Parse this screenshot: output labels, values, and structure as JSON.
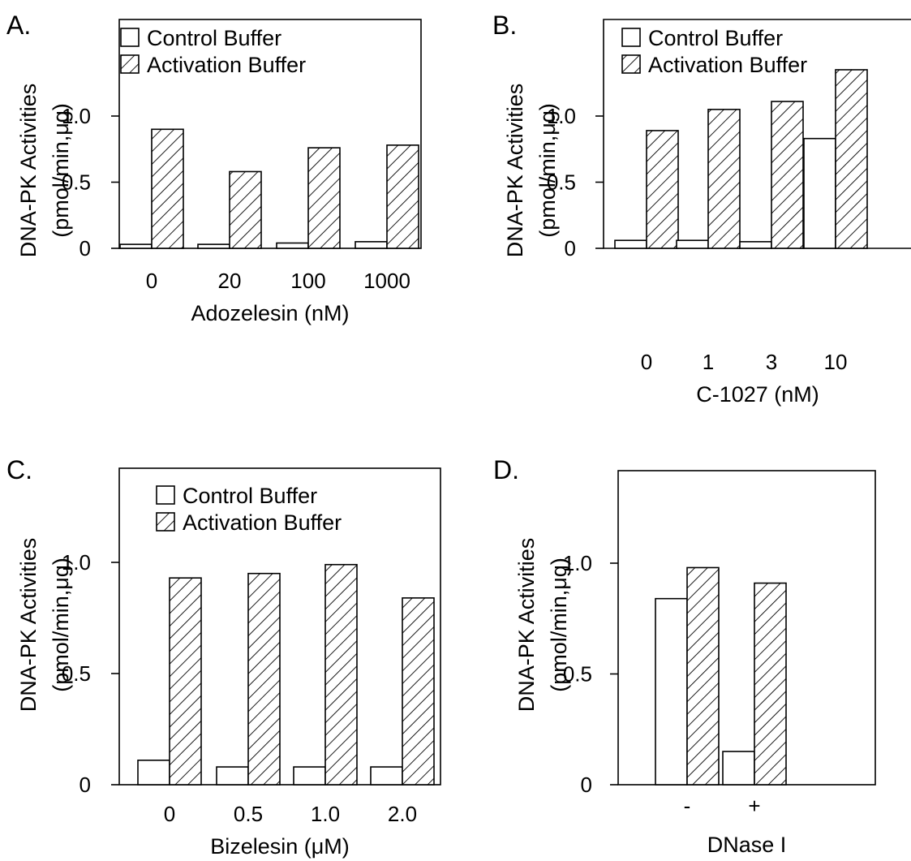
{
  "legend": {
    "control": "Control Buffer",
    "activation": "Activation Buffer"
  },
  "colors": {
    "control_fill": "#ffffff",
    "activation_hatch": "#000000",
    "stroke": "#000000"
  },
  "chart_data": [
    {
      "panel": "A.",
      "type": "bar",
      "categories": [
        "0",
        "20",
        "100",
        "1000"
      ],
      "series": [
        {
          "name": "Control Buffer",
          "values": [
            0.03,
            0.03,
            0.04,
            0.05
          ]
        },
        {
          "name": "Activation Buffer",
          "values": [
            0.9,
            0.58,
            0.76,
            0.78
          ]
        }
      ],
      "xlabel": "Adozelesin (nM)",
      "ylabel": [
        "DNA-PK Activities",
        "(pmol/min,μg)"
      ],
      "yticks": [
        "0",
        "0.5",
        "1.0"
      ],
      "ylim": [
        0,
        1.45
      ],
      "legend_position": "top-left"
    },
    {
      "panel": "B.",
      "type": "bar",
      "categories": [
        "0",
        "1",
        "3",
        "10"
      ],
      "series": [
        {
          "name": "Control Buffer",
          "values": [
            0.06,
            0.06,
            0.05,
            0.83
          ]
        },
        {
          "name": "Activation Buffer",
          "values": [
            0.89,
            1.05,
            1.11,
            1.35
          ]
        }
      ],
      "xlabel": "C-1027  (nM)",
      "ylabel": [
        "DNA-PK Activities",
        "(pmol/min,μg)"
      ],
      "yticks": [
        "0",
        "0.5",
        "1.0"
      ],
      "ylim": [
        0,
        1.4
      ],
      "legend_position": "top-left"
    },
    {
      "panel": "C.",
      "type": "bar",
      "categories": [
        "0",
        "0.5",
        "1.0",
        "2.0"
      ],
      "series": [
        {
          "name": "Control Buffer",
          "values": [
            0.11,
            0.08,
            0.08,
            0.08
          ]
        },
        {
          "name": "Activation Buffer",
          "values": [
            0.93,
            0.95,
            0.99,
            0.84
          ]
        }
      ],
      "xlabel": "Bizelesin (μM)",
      "ylabel": [
        "DNA-PK Activities",
        "(pmol/min,μg)"
      ],
      "yticks": [
        "0",
        "0.5",
        "1.0"
      ],
      "ylim": [
        0,
        1.45
      ],
      "legend_position": "top-left"
    },
    {
      "panel": "D.",
      "type": "bar",
      "categories": [
        "-",
        "+"
      ],
      "series": [
        {
          "name": "Control Buffer",
          "values": [
            0.84,
            0.15
          ]
        },
        {
          "name": "Activation Buffer",
          "values": [
            0.98,
            0.91
          ]
        }
      ],
      "xlabel": "DNase I",
      "ylabel": [
        "DNA-PK Activities",
        "(pmol/min,μg)"
      ],
      "yticks": [
        "0",
        "0.5",
        "1.0"
      ],
      "ylim": [
        0,
        1.45
      ],
      "legend_position": "none"
    }
  ]
}
